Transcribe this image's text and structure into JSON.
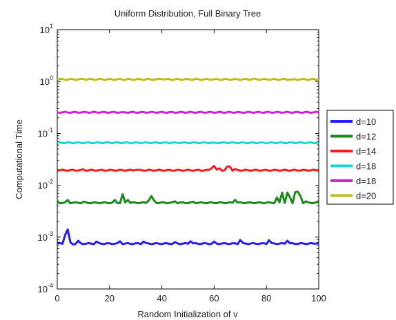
{
  "chart_data": {
    "type": "line",
    "title": "Uniform Distribution, Full Binary Tree",
    "xlabel": "Random Initialization of v",
    "ylabel": "Computational Time",
    "xlim": [
      0,
      100
    ],
    "ylim": [
      0.0001,
      10
    ],
    "yscale": "log",
    "grid": false,
    "legend_position": "right",
    "x_ticks": [
      "0",
      "20",
      "40",
      "60",
      "80",
      "100"
    ],
    "y_ticks": [
      {
        "base": "10",
        "exp": "-4",
        "value": 0.0001
      },
      {
        "base": "10",
        "exp": "-3",
        "value": 0.001
      },
      {
        "base": "10",
        "exp": "-2",
        "value": 0.01
      },
      {
        "base": "10",
        "exp": "-1",
        "value": 0.1
      },
      {
        "base": "10",
        "exp": "0",
        "value": 1
      },
      {
        "base": "10",
        "exp": "1",
        "value": 10
      }
    ],
    "series": [
      {
        "name": "d=10",
        "color": "#1f1fff",
        "base": 0.00075,
        "events": [
          [
            3,
            0.0011
          ],
          [
            4,
            0.0014
          ],
          [
            5,
            0.0008
          ],
          [
            6,
            0.00072
          ],
          [
            8,
            0.00085
          ],
          [
            15,
            0.00082
          ],
          [
            24,
            0.00083
          ],
          [
            33,
            0.00082
          ],
          [
            45,
            0.0008
          ],
          [
            51,
            0.00083
          ],
          [
            60,
            0.00082
          ],
          [
            70,
            0.00088
          ],
          [
            81,
            0.00087
          ],
          [
            88,
            0.00085
          ],
          [
            99,
            0.00075
          ]
        ]
      },
      {
        "name": "d=12",
        "color": "#1a8a1a",
        "base": 0.0046,
        "events": [
          [
            4,
            0.0052
          ],
          [
            10,
            0.0048
          ],
          [
            22,
            0.0052
          ],
          [
            25,
            0.0067
          ],
          [
            27,
            0.0052
          ],
          [
            35,
            0.0051
          ],
          [
            36,
            0.0062
          ],
          [
            37,
            0.0051
          ],
          [
            45,
            0.0049
          ],
          [
            52,
            0.0048
          ],
          [
            68,
            0.0052
          ],
          [
            84,
            0.0058
          ],
          [
            86,
            0.0072
          ],
          [
            88,
            0.0072
          ],
          [
            89,
            0.0058
          ],
          [
            91,
            0.0074
          ],
          [
            92,
            0.0075
          ],
          [
            93,
            0.0062
          ],
          [
            95,
            0.0049
          ]
        ]
      },
      {
        "name": "d=14",
        "color": "#ff1a1a",
        "base": 0.0195,
        "events": [
          [
            10,
            0.0202
          ],
          [
            30,
            0.0198
          ],
          [
            59,
            0.0213
          ],
          [
            60,
            0.0235
          ],
          [
            62,
            0.0212
          ],
          [
            65,
            0.0228
          ],
          [
            66,
            0.023
          ],
          [
            68,
            0.0205
          ],
          [
            80,
            0.0198
          ]
        ]
      },
      {
        "name": "d=18",
        "color": "#1fd6d6",
        "base": 0.066,
        "events": [
          [
            20,
            0.0665
          ],
          [
            60,
            0.0662
          ]
        ]
      },
      {
        "name": "d=18",
        "color": "#d61fd6",
        "base": 0.255,
        "events": [
          [
            25,
            0.257
          ],
          [
            70,
            0.256
          ]
        ]
      },
      {
        "name": "d=20",
        "color": "#bcbc1a",
        "base": 1.1,
        "events": [
          [
            10,
            1.12
          ],
          [
            40,
            1.11
          ],
          [
            75,
            1.14
          ],
          [
            90,
            1.1
          ]
        ]
      }
    ]
  }
}
